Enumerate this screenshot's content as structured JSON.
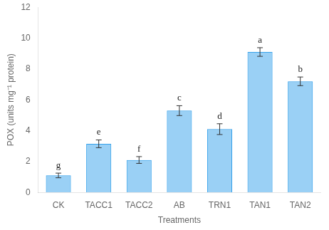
{
  "chart_data": {
    "type": "bar",
    "categories": [
      "CK",
      "TACC1",
      "TACC2",
      "AB",
      "TRN1",
      "TAN1",
      "TAN2"
    ],
    "values": [
      1.1,
      3.15,
      2.1,
      5.3,
      4.1,
      9.1,
      7.2
    ],
    "errors": [
      0.15,
      0.25,
      0.22,
      0.32,
      0.35,
      0.28,
      0.28
    ],
    "annotations": [
      {
        "category": "CK",
        "text": "g"
      },
      {
        "category": "TACC1",
        "text": "e"
      },
      {
        "category": "TACC2",
        "text": "f"
      },
      {
        "category": "AB",
        "text": "c"
      },
      {
        "category": "TRN1",
        "text": "d"
      },
      {
        "category": "TAN1",
        "text": "a"
      },
      {
        "category": "TAN2",
        "text": "b"
      }
    ],
    "xlabel": "Treatments",
    "ylabel": "POX (units mg⁻¹ protein)",
    "ylim": [
      0,
      12
    ],
    "yticks": [
      0,
      2,
      4,
      6,
      8,
      10,
      12
    ],
    "grid": false
  }
}
